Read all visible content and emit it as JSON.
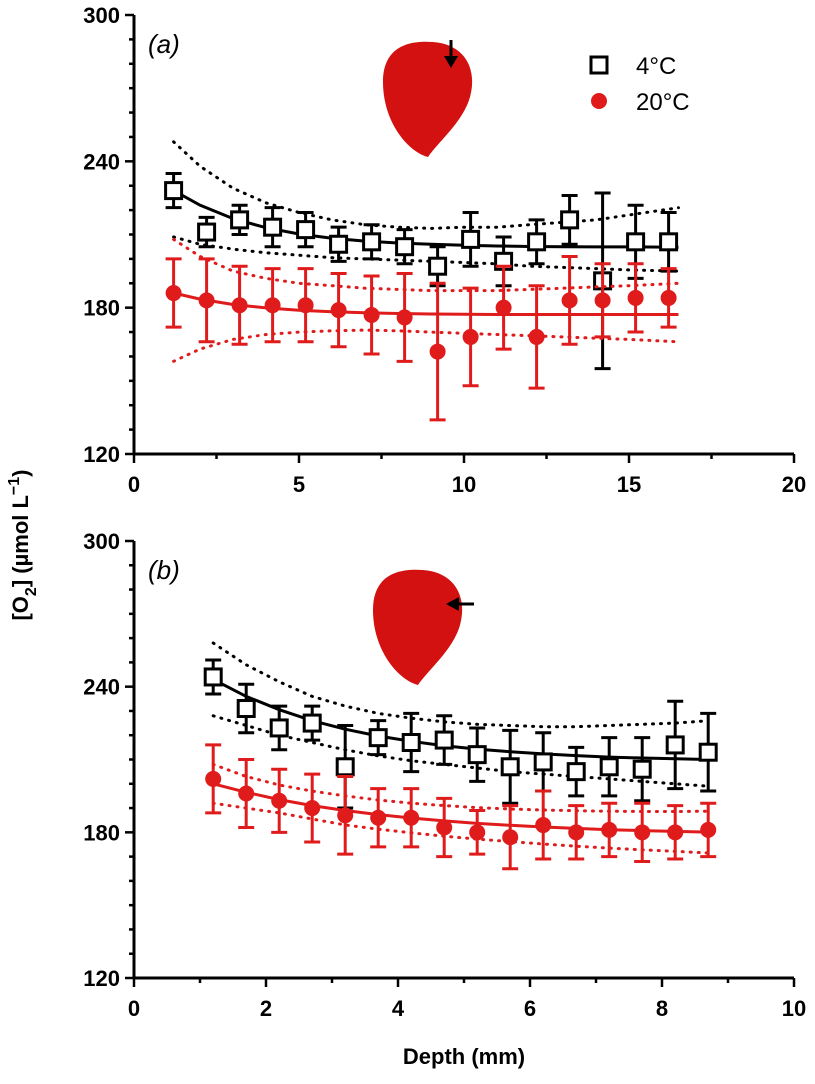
{
  "figure": {
    "ylabel_main": "[O",
    "ylabel_sub": "2",
    "ylabel_rest": "] (µmol L",
    "ylabel_sup": "−1",
    "ylabel_end": ")",
    "xlabel": "Depth (mm)"
  },
  "colors": {
    "series_4C": "#000000",
    "series_20C": "#e01b1b",
    "heart": "#d41111"
  },
  "chart_data": [
    {
      "type": "scatter",
      "panel_label_open": "(",
      "panel_label_letter": "a",
      "panel_label_close": ")",
      "ylim": [
        120,
        300
      ],
      "xlim": [
        0,
        20
      ],
      "yticks": [
        120,
        180,
        240,
        300
      ],
      "xticks": [
        0,
        5,
        10,
        15,
        20
      ],
      "legend": {
        "position": "top-right",
        "entries": [
          "4°C",
          "20°C"
        ]
      },
      "arrow_direction": "down",
      "series": [
        {
          "name": "4°C",
          "marker": "open-square",
          "x": [
            1.2,
            2.2,
            3.2,
            4.2,
            5.2,
            6.2,
            7.2,
            8.2,
            9.2,
            10.2,
            11.2,
            12.2,
            13.2,
            14.2,
            15.2,
            16.2
          ],
          "y": [
            228,
            211,
            216,
            213,
            212,
            206,
            207,
            205,
            197,
            208,
            199,
            207,
            216,
            191,
            207,
            207
          ],
          "err": [
            7,
            6,
            6,
            8,
            7,
            7,
            7,
            7,
            8,
            11,
            10,
            9,
            10,
            36,
            15,
            12
          ],
          "fit_x": [
            1.2,
            2,
            3,
            4,
            5,
            6,
            7,
            8,
            9,
            10,
            11,
            12,
            13,
            14,
            15,
            16.5
          ],
          "fit_y": [
            228,
            222,
            216.5,
            212.8,
            210.2,
            208.5,
            207.3,
            206.5,
            206,
            205.6,
            205.3,
            205.1,
            205,
            204.9,
            204.9,
            204.8
          ],
          "band_upper": [
            248,
            238,
            229,
            223,
            219,
            216,
            214,
            213,
            212.5,
            213,
            213,
            214,
            215,
            216,
            218,
            221
          ],
          "band_lower": [
            209,
            206,
            204,
            202.5,
            201.5,
            200.5,
            200,
            199.5,
            199,
            198.5,
            198,
            197,
            196.5,
            196,
            195.5,
            195
          ]
        },
        {
          "name": "20°C",
          "marker": "filled-circle",
          "x": [
            1.2,
            2.2,
            3.2,
            4.2,
            5.2,
            6.2,
            7.2,
            8.2,
            9.2,
            10.2,
            11.2,
            12.2,
            13.2,
            14.2,
            15.2,
            16.2
          ],
          "y": [
            186,
            183,
            181,
            181,
            181,
            179,
            177,
            176,
            162,
            168,
            180,
            168,
            183,
            183,
            184,
            184
          ],
          "err": [
            14,
            17,
            16,
            15,
            15,
            15,
            16,
            18,
            28,
            20,
            17,
            21,
            18,
            15,
            14,
            12
          ],
          "fit_x": [
            1.2,
            2,
            3,
            4,
            5,
            6,
            7,
            8,
            9,
            10,
            11,
            12,
            13,
            14,
            15,
            16.5
          ],
          "fit_y": [
            186,
            183.5,
            181.3,
            179.9,
            178.9,
            178.3,
            177.9,
            177.6,
            177.4,
            177.3,
            177.2,
            177.2,
            177.2,
            177.2,
            177.2,
            177.2
          ],
          "band_upper": [
            208,
            201,
            195,
            192,
            190,
            189,
            188,
            187.5,
            187,
            187,
            187,
            187.5,
            188,
            188.5,
            189,
            190
          ],
          "band_lower": [
            158,
            163,
            167,
            169,
            170,
            170.5,
            170.8,
            170.5,
            170,
            169.5,
            169,
            168.5,
            168,
            167.5,
            167,
            166
          ]
        }
      ]
    },
    {
      "type": "scatter",
      "panel_label_open": "(",
      "panel_label_letter": "b",
      "panel_label_close": ")",
      "ylim": [
        120,
        300
      ],
      "xlim": [
        0,
        10
      ],
      "yticks": [
        120,
        180,
        240,
        300
      ],
      "xticks": [
        0,
        2,
        4,
        6,
        8,
        10
      ],
      "arrow_direction": "left",
      "series": [
        {
          "name": "4°C",
          "marker": "open-square",
          "x": [
            1.2,
            1.7,
            2.2,
            2.7,
            3.2,
            3.7,
            4.2,
            4.7,
            5.2,
            5.7,
            6.2,
            6.7,
            7.2,
            7.7,
            8.2,
            8.7
          ],
          "y": [
            244,
            231,
            223,
            225,
            207,
            219,
            217,
            218,
            212,
            207,
            209,
            205,
            207,
            206,
            216,
            213
          ],
          "err": [
            7,
            10,
            9,
            7,
            17,
            7,
            12,
            10,
            11,
            15,
            12,
            10,
            12,
            13,
            18,
            16
          ],
          "fit_x": [
            1.2,
            1.7,
            2.2,
            2.7,
            3.2,
            3.7,
            4.2,
            4.7,
            5.2,
            5.7,
            6.2,
            6.7,
            7.2,
            7.7,
            8.2,
            8.7
          ],
          "fit_y": [
            243,
            236,
            230.5,
            226,
            222.5,
            219.7,
            217.5,
            215.7,
            214.3,
            213.2,
            212.3,
            211.6,
            211,
            210.6,
            210.3,
            210
          ],
          "band_upper": [
            258,
            249,
            242,
            236,
            232,
            229,
            227,
            225.5,
            224.5,
            224,
            223.5,
            223.5,
            224,
            224.5,
            225,
            226
          ],
          "band_lower": [
            228,
            224,
            220,
            217,
            214,
            211.5,
            209.5,
            208,
            206.5,
            205,
            204,
            203,
            202,
            201,
            200,
            199
          ]
        },
        {
          "name": "20°C",
          "marker": "filled-circle",
          "x": [
            1.2,
            1.7,
            2.2,
            2.7,
            3.2,
            3.7,
            4.2,
            4.7,
            5.2,
            5.7,
            6.2,
            6.7,
            7.2,
            7.7,
            8.2,
            8.7
          ],
          "y": [
            202,
            196,
            193,
            190,
            187,
            186,
            186,
            182,
            180,
            178,
            183,
            180,
            181,
            180,
            180,
            181
          ],
          "err": [
            14,
            14,
            13,
            14,
            16,
            12,
            12,
            12,
            9,
            13,
            14,
            11,
            11,
            12,
            11,
            11
          ],
          "fit_x": [
            1.2,
            1.7,
            2.2,
            2.7,
            3.2,
            3.7,
            4.2,
            4.7,
            5.2,
            5.7,
            6.2,
            6.7,
            7.2,
            7.7,
            8.2,
            8.7
          ],
          "fit_y": [
            200,
            196.5,
            193.5,
            191,
            189,
            187.3,
            185.9,
            184.7,
            183.7,
            182.9,
            182.2,
            181.6,
            181.1,
            180.7,
            180.4,
            180.1
          ],
          "band_upper": [
            208,
            203,
            199.5,
            197,
            195,
            193.3,
            192,
            191,
            190.2,
            189.6,
            189.2,
            188.9,
            188.7,
            188.6,
            188.6,
            188.7
          ],
          "band_lower": [
            192,
            190,
            188,
            185.5,
            183,
            181.3,
            179.8,
            178.4,
            177.2,
            176.2,
            175.2,
            174.3,
            173.5,
            172.8,
            172.2,
            171.5
          ]
        }
      ]
    }
  ]
}
